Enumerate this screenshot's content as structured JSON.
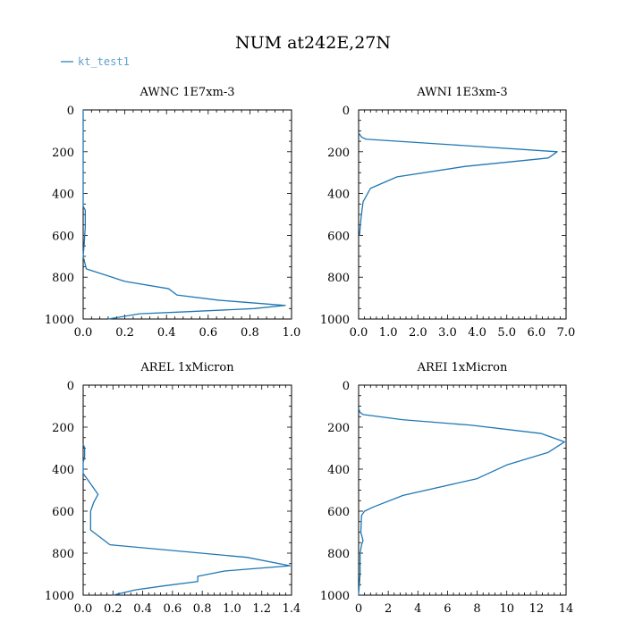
{
  "title": "NUM at242E,27N",
  "legend": {
    "label": "kt_test1",
    "color": "#1f77b4",
    "placement": "top-left"
  },
  "chart_data": [
    {
      "type": "line",
      "title": "AWNC  1E7xm-3",
      "xlim": [
        0,
        1.0
      ],
      "ylim": [
        1000,
        0
      ],
      "xticks": [
        0,
        0.2,
        0.4,
        0.6,
        0.8,
        1.0
      ],
      "xtick_labels": [
        "0.0",
        "0.2",
        "0.4",
        "0.6",
        "0.8",
        "1.0"
      ],
      "yticks": [
        0,
        200,
        400,
        600,
        800,
        1000
      ],
      "ytick_labels": [
        "0",
        "200",
        "400",
        "600",
        "800",
        "1000"
      ],
      "series": [
        {
          "name": "kt_test1",
          "points": [
            [
              0,
              0
            ],
            [
              0,
              100
            ],
            [
              0,
              200
            ],
            [
              0,
              300
            ],
            [
              0,
              400
            ],
            [
              0,
              460
            ],
            [
              0.01,
              480
            ],
            [
              0.01,
              560
            ],
            [
              0.005,
              640
            ],
            [
              0,
              700
            ],
            [
              0.01,
              740
            ],
            [
              0.015,
              760
            ],
            [
              0.2,
              820
            ],
            [
              0.41,
              855
            ],
            [
              0.45,
              885
            ],
            [
              0.65,
              910
            ],
            [
              0.97,
              935
            ],
            [
              0.82,
              950
            ],
            [
              0.5,
              965
            ],
            [
              0.27,
              975
            ],
            [
              0.12,
              1000
            ]
          ]
        }
      ]
    },
    {
      "type": "line",
      "title": "AWNI  1E3xm-3",
      "xlim": [
        0,
        7.0
      ],
      "ylim": [
        1000,
        0
      ],
      "xticks": [
        0,
        1,
        2,
        3,
        4,
        5,
        6,
        7
      ],
      "xtick_labels": [
        "0.0",
        "1.0",
        "2.0",
        "3.0",
        "4.0",
        "5.0",
        "6.0",
        "7.0"
      ],
      "yticks": [
        0,
        200,
        400,
        600,
        800,
        1000
      ],
      "ytick_labels": [
        "0",
        "200",
        "400",
        "600",
        "800",
        "1000"
      ],
      "series": [
        {
          "name": "kt_test1",
          "points": [
            [
              0,
              110
            ],
            [
              0.1,
              130
            ],
            [
              0.25,
              140
            ],
            [
              3.5,
              170
            ],
            [
              6.7,
              200
            ],
            [
              6.4,
              230
            ],
            [
              3.6,
              270
            ],
            [
              1.3,
              320
            ],
            [
              0.4,
              375
            ],
            [
              0.15,
              440
            ],
            [
              0.08,
              520
            ],
            [
              0.03,
              600
            ]
          ]
        }
      ]
    },
    {
      "type": "line",
      "title": "AREL  1xMicron",
      "xlim": [
        0,
        1.4
      ],
      "ylim": [
        1000,
        0
      ],
      "xticks": [
        0,
        0.2,
        0.4,
        0.6,
        0.8,
        1.0,
        1.2,
        1.4
      ],
      "xtick_labels": [
        "0.0",
        "0.2",
        "0.4",
        "0.6",
        "0.8",
        "1.0",
        "1.2",
        "1.4"
      ],
      "yticks": [
        0,
        200,
        400,
        600,
        800,
        1000
      ],
      "ytick_labels": [
        "0",
        "200",
        "400",
        "600",
        "800",
        "1000"
      ],
      "series": [
        {
          "name": "kt_test1",
          "points": [
            [
              0,
              280
            ],
            [
              0.01,
              300
            ],
            [
              0.01,
              340
            ],
            [
              0,
              370
            ],
            [
              0,
              420
            ],
            [
              0.02,
              440
            ],
            [
              0.06,
              480
            ],
            [
              0.1,
              520
            ],
            [
              0.07,
              560
            ],
            [
              0.05,
              600
            ],
            [
              0.05,
              690
            ],
            [
              0.18,
              760
            ],
            [
              1.1,
              820
            ],
            [
              1.39,
              860
            ],
            [
              0.95,
              885
            ],
            [
              0.77,
              910
            ],
            [
              0.77,
              935
            ],
            [
              0.55,
              955
            ],
            [
              0.35,
              975
            ],
            [
              0.2,
              1000
            ]
          ]
        }
      ]
    },
    {
      "type": "line",
      "title": "AREI  1xMicron",
      "xlim": [
        0,
        14
      ],
      "ylim": [
        1000,
        0
      ],
      "xticks": [
        0,
        2,
        4,
        6,
        8,
        10,
        12,
        14
      ],
      "xtick_labels": [
        "0",
        "2",
        "4",
        "6",
        "8",
        "10",
        "12",
        "14"
      ],
      "yticks": [
        0,
        200,
        400,
        600,
        800,
        1000
      ],
      "ytick_labels": [
        "0",
        "200",
        "400",
        "600",
        "800",
        "1000"
      ],
      "series": [
        {
          "name": "kt_test1",
          "points": [
            [
              0,
              110
            ],
            [
              0.1,
              130
            ],
            [
              0.3,
              140
            ],
            [
              3,
              165
            ],
            [
              7.5,
              190
            ],
            [
              12.3,
              230
            ],
            [
              13.9,
              270
            ],
            [
              12.8,
              320
            ],
            [
              10,
              380
            ],
            [
              8,
              445
            ],
            [
              3,
              525
            ],
            [
              1,
              580
            ],
            [
              0.4,
              600
            ],
            [
              0.2,
              620
            ],
            [
              0.15,
              700
            ],
            [
              0.3,
              740
            ],
            [
              0.2,
              760
            ],
            [
              0.1,
              800
            ],
            [
              0.1,
              900
            ],
            [
              0,
              1000
            ]
          ]
        }
      ]
    }
  ]
}
